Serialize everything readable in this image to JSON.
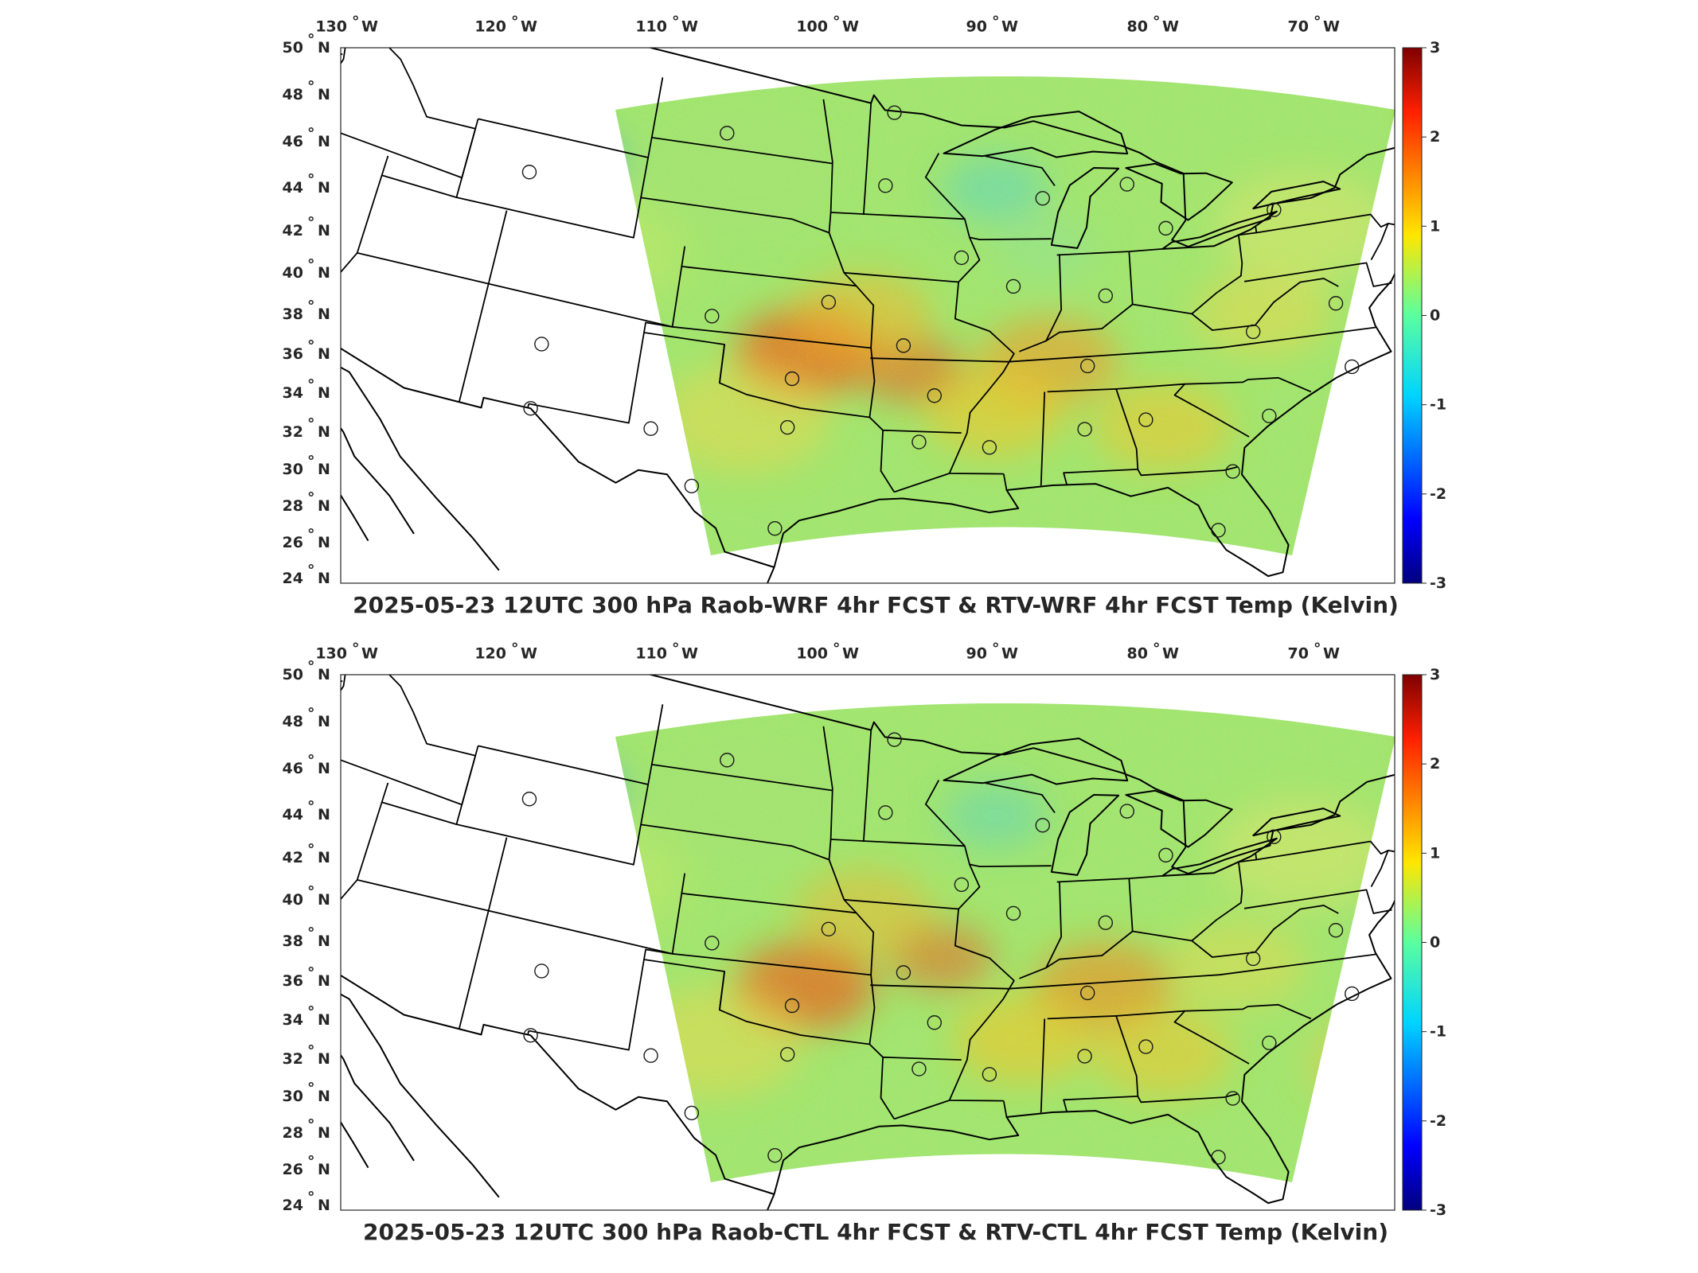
{
  "panels": [
    {
      "title": "2025-05-23 12UTC 300 hPa Raob-WRF 4hr FCST & RTV-WRF 4hr FCST Temp (Kelvin)",
      "lon_ticks": [
        "130",
        "120",
        "110",
        "100",
        "90",
        "80",
        "70"
      ],
      "lat_ticks": [
        "50",
        "48",
        "46",
        "44",
        "42",
        "40",
        "38",
        "36",
        "34",
        "32",
        "30",
        "28",
        "26",
        "24"
      ],
      "colorbar_ticks": [
        "3",
        "2",
        "1",
        "0",
        "-1",
        "-2",
        "-3"
      ]
    },
    {
      "title": "2025-05-23 12UTC 300 hPa Raob-CTL 4hr FCST & RTV-CTL 4hr FCST Temp (Kelvin)",
      "lon_ticks": [
        "130",
        "120",
        "110",
        "100",
        "90",
        "80",
        "70"
      ],
      "lat_ticks": [
        "50",
        "48",
        "46",
        "44",
        "42",
        "40",
        "38",
        "36",
        "34",
        "32",
        "30",
        "28",
        "26",
        "24"
      ],
      "colorbar_ticks": [
        "3",
        "2",
        "1",
        "0",
        "-1",
        "-2",
        "-3"
      ]
    }
  ],
  "units": {
    "lon": "W",
    "lat": "N",
    "degree": "°"
  },
  "colorbar": {
    "min": -3,
    "max": 3,
    "colormap": "jet"
  },
  "colors": {
    "field_base": "#8fe37a",
    "warm": "#f2b428",
    "hot": "#e8601e",
    "cool": "#45d5d8",
    "cold": "#2a7de8",
    "coast": "#000000"
  },
  "map": {
    "projection": "lambert-conformal",
    "lon_range": [
      -131,
      -64
    ],
    "lat_range": [
      24,
      50
    ]
  },
  "stations": [
    {
      "lon": -94.2,
      "lat": 48.6
    },
    {
      "lon": -101.0,
      "lat": 46.8
    },
    {
      "lon": -94.4,
      "lat": 45.0
    },
    {
      "lon": -88.1,
      "lat": 44.5
    },
    {
      "lon": -84.7,
      "lat": 45.0
    },
    {
      "lon": -83.3,
      "lat": 42.7
    },
    {
      "lon": -79.0,
      "lat": 43.0
    },
    {
      "lon": -73.8,
      "lat": 42.7
    },
    {
      "lon": -108.5,
      "lat": 43.1
    },
    {
      "lon": -91.3,
      "lat": 41.6
    },
    {
      "lon": -89.3,
      "lat": 40.2
    },
    {
      "lon": -85.8,
      "lat": 39.6
    },
    {
      "lon": -96.3,
      "lat": 39.1
    },
    {
      "lon": -100.6,
      "lat": 37.8
    },
    {
      "lon": -93.4,
      "lat": 37.2
    },
    {
      "lon": -86.6,
      "lat": 36.2
    },
    {
      "lon": -80.4,
      "lat": 37.2
    },
    {
      "lon": -77.2,
      "lat": 38.0
    },
    {
      "lon": -77.0,
      "lat": 34.8
    },
    {
      "lon": -80.2,
      "lat": 33.0
    },
    {
      "lon": -84.6,
      "lat": 33.4
    },
    {
      "lon": -86.8,
      "lat": 33.1
    },
    {
      "lon": -90.2,
      "lat": 32.3
    },
    {
      "lon": -92.7,
      "lat": 32.5
    },
    {
      "lon": -97.4,
      "lat": 32.8
    },
    {
      "lon": -97.4,
      "lat": 35.2
    },
    {
      "lon": -92.2,
      "lat": 34.8
    },
    {
      "lon": -106.6,
      "lat": 35.0
    },
    {
      "lon": -106.5,
      "lat": 31.8
    },
    {
      "lon": -102.2,
      "lat": 31.9
    },
    {
      "lon": -100.5,
      "lat": 29.4
    },
    {
      "lon": -97.5,
      "lat": 27.8
    },
    {
      "lon": -81.7,
      "lat": 30.5
    },
    {
      "lon": -82.4,
      "lat": 27.7
    },
    {
      "lon": -73.9,
      "lat": 40.8
    }
  ]
}
